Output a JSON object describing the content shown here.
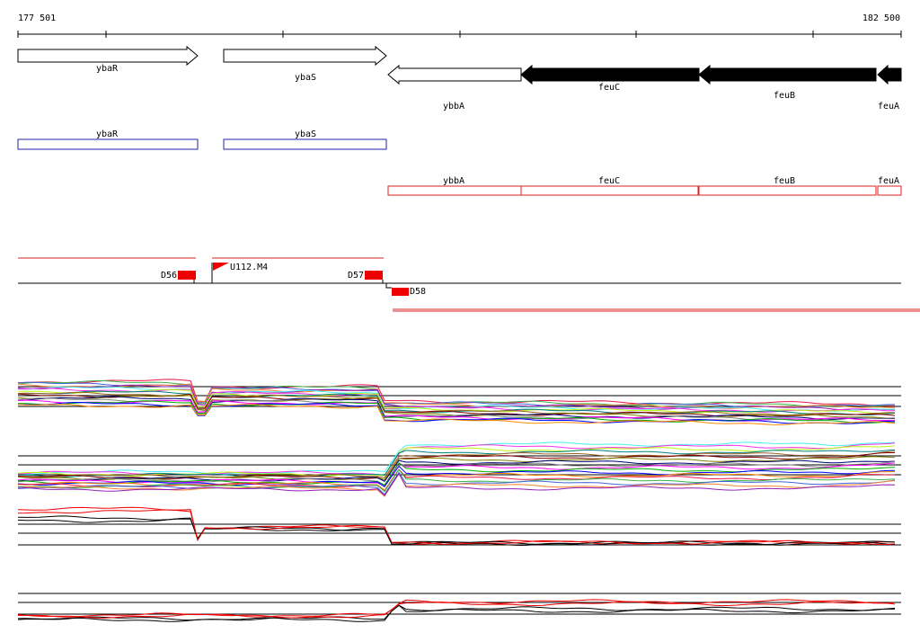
{
  "ruler": {
    "start": "177 501",
    "end": "182 500"
  },
  "genes": [
    "ybaR",
    "ybaS",
    "ybbA",
    "feuC",
    "feuB",
    "feuA"
  ],
  "annotations": [
    "ybaR",
    "ybaS",
    "ybbA",
    "feuC",
    "feuB",
    "feuA"
  ],
  "features": [
    "D56",
    "U112.M4",
    "D57",
    "D58"
  ]
}
